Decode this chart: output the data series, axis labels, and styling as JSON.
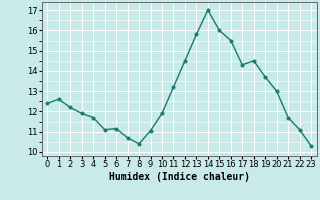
{
  "x": [
    0,
    1,
    2,
    3,
    4,
    5,
    6,
    7,
    8,
    9,
    10,
    11,
    12,
    13,
    14,
    15,
    16,
    17,
    18,
    19,
    20,
    21,
    22,
    23
  ],
  "y": [
    12.4,
    12.6,
    12.2,
    11.9,
    11.7,
    11.1,
    11.15,
    10.7,
    10.4,
    11.05,
    11.9,
    13.2,
    14.5,
    15.8,
    17.0,
    16.0,
    15.5,
    14.3,
    14.5,
    13.7,
    13.0,
    11.7,
    11.1,
    10.3
  ],
  "xlabel": "Humidex (Indice chaleur)",
  "ylim": [
    9.8,
    17.4
  ],
  "xlim": [
    -0.5,
    23.5
  ],
  "yticks": [
    10,
    11,
    12,
    13,
    14,
    15,
    16,
    17
  ],
  "xtick_labels": [
    "0",
    "1",
    "2",
    "3",
    "4",
    "5",
    "6",
    "7",
    "8",
    "9",
    "10",
    "11",
    "12",
    "13",
    "14",
    "15",
    "16",
    "17",
    "18",
    "19",
    "20",
    "21",
    "22",
    "23"
  ],
  "line_color": "#1a7a6e",
  "marker_color": "#1a7a6e",
  "bg_color": "#c8eae8",
  "grid_color": "#ffffff",
  "font_size_label": 7,
  "font_size_tick": 6,
  "line_width": 1.0,
  "marker_size": 2.5
}
